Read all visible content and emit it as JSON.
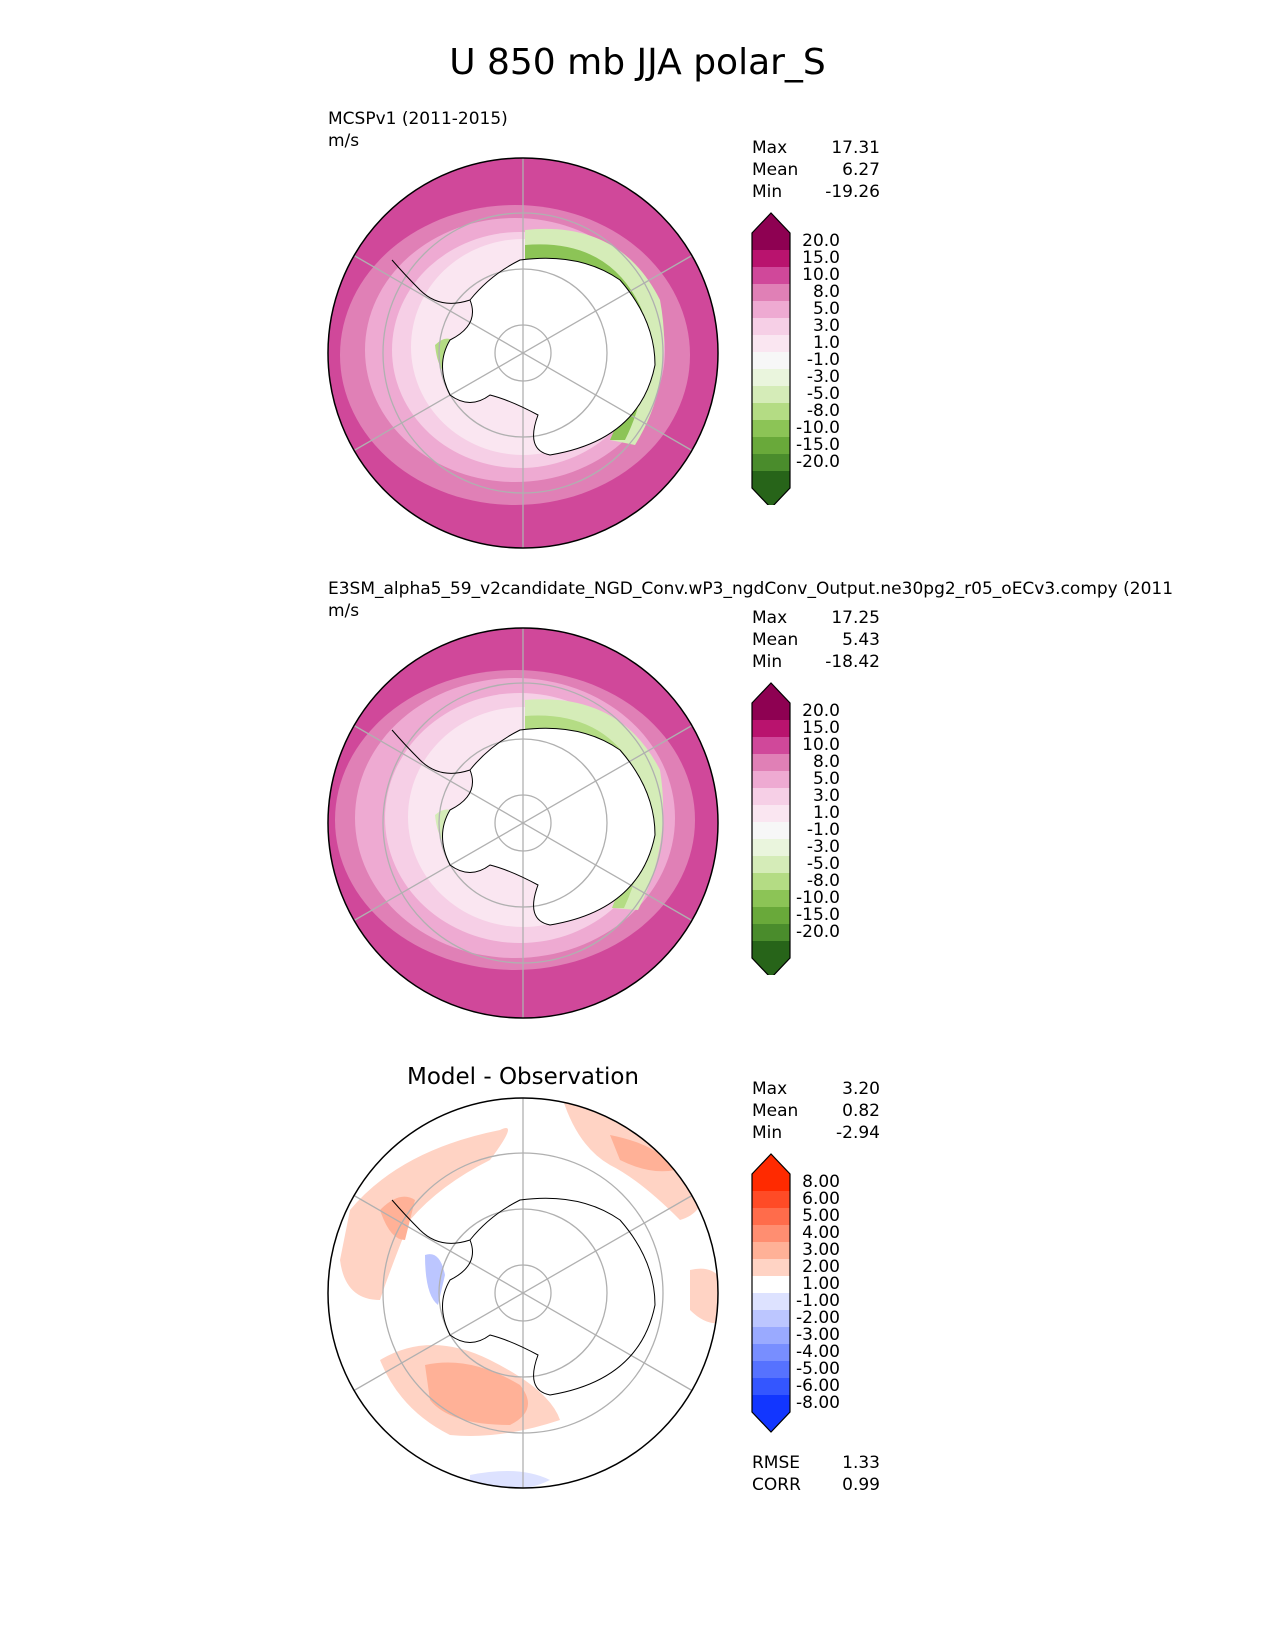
{
  "figure": {
    "title": "U 850 mb JJA polar_S"
  },
  "colors": {
    "pink_scale": [
      "#8e0152",
      "#b9136e",
      "#d0489a",
      "#e080b6",
      "#eeaad2",
      "#f6cfe6",
      "#fae6f1",
      "#f7f7f7",
      "#eaf5dd",
      "#d5ecb8",
      "#b4dc84",
      "#8cc456",
      "#69a93a",
      "#4a8c2c",
      "#276419"
    ],
    "diff_scale": [
      "#ff2a00",
      "#ff4b26",
      "#ff6c4b",
      "#ff8e71",
      "#ffb197",
      "#ffd3c4",
      "#ffffff",
      "#dde2ff",
      "#bcc6ff",
      "#9aaaff",
      "#788eff",
      "#5672ff",
      "#3456ff",
      "#1236ff"
    ]
  },
  "panels": [
    {
      "title": "MCSPv1 (2011-2015)",
      "units": "m/s",
      "stats": {
        "max_label": "Max",
        "max": "17.31",
        "mean_label": "Mean",
        "mean": "6.27",
        "min_label": "Min",
        "min": "-19.26"
      }
    },
    {
      "title": "E3SM_alpha5_59_v2candidate_NGD_Conv.wP3_ngdConv_Output.ne30pg2_r05_oECv3.compy (2011",
      "units": "m/s",
      "stats": {
        "max_label": "Max",
        "max": "17.25",
        "mean_label": "Mean",
        "mean": "5.43",
        "min_label": "Min",
        "min": "-18.42"
      }
    },
    {
      "title": "Model - Observation",
      "stats": {
        "max_label": "Max",
        "max": "3.20",
        "mean_label": "Mean",
        "mean": "0.82",
        "min_label": "Min",
        "min": "-2.94"
      },
      "metrics": {
        "rmse_label": "RMSE",
        "rmse": "1.33",
        "corr_label": "CORR",
        "corr": "0.99"
      }
    }
  ],
  "colorbars": {
    "field_levels": [
      "20.0",
      "15.0",
      "10.0",
      "8.0",
      "5.0",
      "3.0",
      "1.0",
      "-1.0",
      "-3.0",
      "-5.0",
      "-8.0",
      "-10.0",
      "-15.0",
      "-20.0"
    ],
    "diff_levels": [
      "8.00",
      "6.00",
      "5.00",
      "4.00",
      "3.00",
      "2.00",
      "1.00",
      "-1.00",
      "-2.00",
      "-3.00",
      "-4.00",
      "-5.00",
      "-6.00",
      "-8.00"
    ]
  },
  "chart_data": [
    {
      "type": "heatmap",
      "title": "MCSPv1 (2011-2015)",
      "variable": "U 850 mb",
      "season": "JJA",
      "projection": "south polar stereographic",
      "units": "m/s",
      "stats": {
        "max": 17.31,
        "mean": 6.27,
        "min": -19.26
      },
      "levels": [
        -20,
        -15,
        -10,
        -8,
        -5,
        -3,
        -1,
        1,
        3,
        5,
        8,
        10,
        15,
        20
      ]
    },
    {
      "type": "heatmap",
      "title": "E3SM_alpha5_59_v2candidate_NGD_Conv.wP3_ngdConv_Output.ne30pg2_r05_oECv3.compy (2011",
      "variable": "U 850 mb",
      "season": "JJA",
      "projection": "south polar stereographic",
      "units": "m/s",
      "stats": {
        "max": 17.25,
        "mean": 5.43,
        "min": -18.42
      },
      "levels": [
        -20,
        -15,
        -10,
        -8,
        -5,
        -3,
        -1,
        1,
        3,
        5,
        8,
        10,
        15,
        20
      ]
    },
    {
      "type": "heatmap",
      "title": "Model - Observation",
      "variable": "U 850 mb difference",
      "season": "JJA",
      "projection": "south polar stereographic",
      "stats": {
        "max": 3.2,
        "mean": 0.82,
        "min": -2.94
      },
      "rmse": 1.33,
      "corr": 0.99,
      "levels": [
        -8,
        -6,
        -5,
        -4,
        -3,
        -2,
        -1,
        1,
        2,
        3,
        4,
        5,
        6,
        8
      ]
    }
  ]
}
